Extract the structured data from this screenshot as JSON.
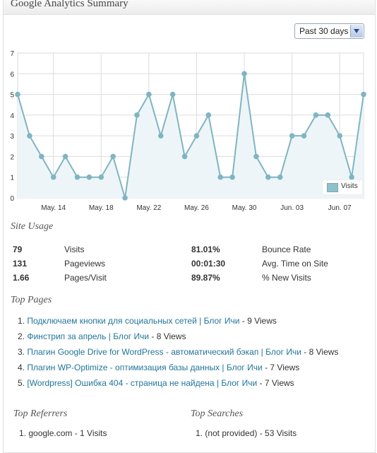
{
  "widget_title": "Google Analytics Summary",
  "period_select": {
    "value": "Past 30 days"
  },
  "chart_data": {
    "type": "area",
    "x": [
      1,
      2,
      3,
      4,
      5,
      6,
      7,
      8,
      9,
      10,
      11,
      12,
      13,
      14,
      15,
      16,
      17,
      18,
      19,
      20,
      21,
      22,
      23,
      24,
      25,
      26,
      27,
      28,
      29,
      30
    ],
    "series": [
      {
        "name": "Visits",
        "values": [
          5,
          3,
          2,
          1,
          2,
          1,
          1,
          1,
          2,
          0,
          4,
          5,
          3,
          5,
          2,
          3,
          4,
          1,
          1,
          6,
          2,
          1,
          1,
          3,
          3,
          4,
          4,
          3,
          1,
          5
        ]
      }
    ],
    "x_tick_labels": [
      "May. 14",
      "May. 18",
      "May. 22",
      "May. 26",
      "May. 30",
      "Jun. 03",
      "Jun. 07"
    ],
    "x_tick_positions": [
      4,
      8,
      12,
      16,
      20,
      24,
      28
    ],
    "y_ticks": [
      0,
      1,
      2,
      3,
      4,
      5,
      6,
      7
    ],
    "ylim": [
      0,
      7
    ],
    "legend": "bottom-right",
    "grid": true,
    "line_color": "#7fb5c2",
    "fill_color": "#eef5f8"
  },
  "site_usage": {
    "title": "Site Usage",
    "rows": [
      {
        "v1": "79",
        "l1": "Visits",
        "v2": "81.01%",
        "l2": "Bounce Rate"
      },
      {
        "v1": "131",
        "l1": "Pageviews",
        "v2": "00:01:30",
        "l2": "Avg. Time on Site"
      },
      {
        "v1": "1.66",
        "l1": "Pages/Visit",
        "v2": "89.87%",
        "l2": "% New Visits"
      }
    ]
  },
  "top_pages": {
    "title": "Top Pages",
    "items": [
      {
        "num": "1.",
        "link": "Подключаем кнопки для социальных сетей | Блог Ичи",
        "views": " - 9 Views"
      },
      {
        "num": "2.",
        "link": "Финстрип за апрель | Блог Ичи",
        "views": " - 8 Views"
      },
      {
        "num": "3.",
        "link": "Плагин Google Drive for WordPress - автоматический бэкап | Блог Ичи",
        "views": " - 8 Views"
      },
      {
        "num": "4.",
        "link": "Плагин WP-Optimize - оптимизация базы данных | Блог Ичи",
        "views": " - 7 Views"
      },
      {
        "num": "5.",
        "link": "[Wordpress] Ошибка 404 - страница не найдена | Блог Ичи",
        "views": " - 7 Views"
      }
    ]
  },
  "top_referrers": {
    "title": "Top Referrers",
    "first_item": "1. google.com - 1 Visits"
  },
  "top_searches": {
    "title": "Top Searches",
    "first_item": "1. (not provided) - 53 Visits"
  }
}
